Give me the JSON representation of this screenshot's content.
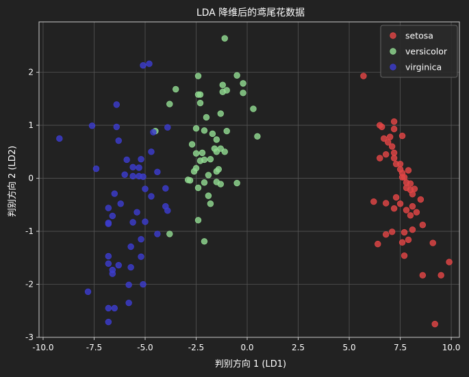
{
  "chart_data": {
    "type": "scatter",
    "title": "LDA 降维后的鸢尾花数据",
    "xlabel": "判别方向 1 (LD1)",
    "ylabel": "判别方向 2 (LD2)",
    "xlim": [
      -10.2,
      10.4
    ],
    "ylim": [
      -3.0,
      2.95
    ],
    "xticks": [
      -10.0,
      -7.5,
      -5.0,
      -2.5,
      0.0,
      2.5,
      5.0,
      7.5,
      10.0
    ],
    "xtick_labels": [
      "-10.0",
      "-7.5",
      "-5.0",
      "-2.5",
      "0.0",
      "2.5",
      "5.0",
      "7.5",
      "10.0"
    ],
    "yticks": [
      -3,
      -2,
      -1,
      0,
      1,
      2
    ],
    "ytick_labels": [
      "-3",
      "-2",
      "-1",
      "0",
      "1",
      "2"
    ],
    "grid": true,
    "legend_position": "top-right",
    "colors": {
      "background": "#222222",
      "grid": "#555555",
      "axes": "#cccccc",
      "text": "#ffffff"
    },
    "series": [
      {
        "name": "setosa",
        "color": "#e04545",
        "points": [
          [
            5.7,
            1.93
          ],
          [
            6.5,
            1.0
          ],
          [
            6.7,
            0.75
          ],
          [
            6.6,
            0.97
          ],
          [
            7.0,
            0.78
          ],
          [
            7.2,
            1.07
          ],
          [
            7.2,
            0.93
          ],
          [
            7.6,
            0.8
          ],
          [
            6.9,
            0.68
          ],
          [
            7.1,
            0.6
          ],
          [
            6.5,
            0.38
          ],
          [
            6.8,
            0.45
          ],
          [
            7.2,
            0.48
          ],
          [
            7.3,
            0.27
          ],
          [
            7.5,
            0.27
          ],
          [
            7.2,
            0.38
          ],
          [
            7.5,
            0.17
          ],
          [
            7.6,
            0.1
          ],
          [
            7.7,
            0.02
          ],
          [
            7.9,
            0.15
          ],
          [
            7.6,
            0.02
          ],
          [
            7.8,
            -0.08
          ],
          [
            8.0,
            -0.1
          ],
          [
            7.8,
            -0.18
          ],
          [
            8.0,
            -0.22
          ],
          [
            8.2,
            -0.2
          ],
          [
            8.1,
            -0.3
          ],
          [
            8.5,
            -0.4
          ],
          [
            6.2,
            -0.44
          ],
          [
            6.8,
            -0.47
          ],
          [
            7.3,
            -0.36
          ],
          [
            7.5,
            -0.48
          ],
          [
            7.2,
            -0.57
          ],
          [
            7.8,
            -0.6
          ],
          [
            8.1,
            -0.53
          ],
          [
            8.3,
            -0.64
          ],
          [
            8.0,
            -0.7
          ],
          [
            8.6,
            -0.88
          ],
          [
            8.1,
            -0.97
          ],
          [
            6.8,
            -1.06
          ],
          [
            7.1,
            -1.01
          ],
          [
            7.7,
            -1.02
          ],
          [
            7.9,
            -1.16
          ],
          [
            6.4,
            -1.24
          ],
          [
            7.6,
            -1.21
          ],
          [
            9.1,
            -1.22
          ],
          [
            7.7,
            -1.46
          ],
          [
            9.9,
            -1.58
          ],
          [
            8.6,
            -1.83
          ],
          [
            9.5,
            -1.83
          ],
          [
            9.2,
            -2.75
          ]
        ]
      },
      {
        "name": "versicolor",
        "color": "#90d890",
        "points": [
          [
            -1.1,
            2.64
          ],
          [
            -0.5,
            1.94
          ],
          [
            -2.4,
            1.93
          ],
          [
            -0.2,
            1.79
          ],
          [
            -1.2,
            1.76
          ],
          [
            -1.0,
            1.66
          ],
          [
            -1.2,
            1.63
          ],
          [
            -0.2,
            1.61
          ],
          [
            -3.5,
            1.68
          ],
          [
            -2.4,
            1.58
          ],
          [
            -2.3,
            1.58
          ],
          [
            -2.3,
            1.42
          ],
          [
            -3.8,
            1.4
          ],
          [
            -1.3,
            1.22
          ],
          [
            0.3,
            1.31
          ],
          [
            -2.0,
            1.15
          ],
          [
            -2.5,
            0.94
          ],
          [
            -2.1,
            0.9
          ],
          [
            -1.7,
            0.84
          ],
          [
            -1.0,
            0.89
          ],
          [
            -4.5,
            0.89
          ],
          [
            -1.5,
            0.73
          ],
          [
            0.5,
            0.79
          ],
          [
            -1.6,
            0.56
          ],
          [
            -1.3,
            0.56
          ],
          [
            -1.5,
            0.5
          ],
          [
            -1.1,
            0.5
          ],
          [
            -2.7,
            0.64
          ],
          [
            -2.2,
            0.48
          ],
          [
            -2.5,
            0.47
          ],
          [
            -1.8,
            0.36
          ],
          [
            -2.1,
            0.35
          ],
          [
            -2.3,
            0.33
          ],
          [
            -1.4,
            0.17
          ],
          [
            -1.5,
            0.13
          ],
          [
            -2.5,
            0.19
          ],
          [
            -1.9,
            0.06
          ],
          [
            -2.6,
            0.13
          ],
          [
            -2.8,
            -0.04
          ],
          [
            -2.9,
            -0.03
          ],
          [
            -2.1,
            -0.08
          ],
          [
            -1.5,
            -0.07
          ],
          [
            -1.3,
            -0.11
          ],
          [
            -0.5,
            -0.09
          ],
          [
            -2.4,
            -0.18
          ],
          [
            -1.9,
            -0.33
          ],
          [
            -1.8,
            -0.48
          ],
          [
            -2.4,
            -0.79
          ],
          [
            -3.8,
            -1.05
          ],
          [
            -2.1,
            -1.19
          ]
        ]
      },
      {
        "name": "virginica",
        "color": "#3c3ccc",
        "points": [
          [
            -4.8,
            2.16
          ],
          [
            -5.1,
            2.13
          ],
          [
            -6.4,
            1.39
          ],
          [
            -7.6,
            0.99
          ],
          [
            -6.4,
            0.97
          ],
          [
            -3.9,
            0.96
          ],
          [
            -4.6,
            0.87
          ],
          [
            -9.2,
            0.75
          ],
          [
            -6.3,
            0.71
          ],
          [
            -4.7,
            0.5
          ],
          [
            -5.9,
            0.35
          ],
          [
            -5.2,
            0.36
          ],
          [
            -7.4,
            0.18
          ],
          [
            -5.6,
            0.21
          ],
          [
            -5.3,
            0.2
          ],
          [
            -4.4,
            0.12
          ],
          [
            -6.0,
            0.07
          ],
          [
            -5.6,
            0.04
          ],
          [
            -5.3,
            0.04
          ],
          [
            -5.1,
            0.03
          ],
          [
            -5.0,
            -0.2
          ],
          [
            -4.0,
            -0.19
          ],
          [
            -6.5,
            -0.29
          ],
          [
            -4.7,
            -0.34
          ],
          [
            -4.0,
            -0.53
          ],
          [
            -3.9,
            -0.61
          ],
          [
            -6.2,
            -0.48
          ],
          [
            -6.8,
            -0.56
          ],
          [
            -5.4,
            -0.64
          ],
          [
            -6.6,
            -0.71
          ],
          [
            -6.8,
            -0.84
          ],
          [
            -5.6,
            -0.83
          ],
          [
            -5.0,
            -0.82
          ],
          [
            -6.8,
            -0.86
          ],
          [
            -4.4,
            -1.05
          ],
          [
            -5.2,
            -1.15
          ],
          [
            -5.7,
            -1.29
          ],
          [
            -6.8,
            -1.47
          ],
          [
            -5.2,
            -1.48
          ],
          [
            -6.8,
            -1.61
          ],
          [
            -6.3,
            -1.64
          ],
          [
            -5.7,
            -1.68
          ],
          [
            -6.6,
            -1.73
          ],
          [
            -6.6,
            -1.8
          ],
          [
            -5.1,
            -2.0
          ],
          [
            -5.8,
            -2.01
          ],
          [
            -7.8,
            -2.14
          ],
          [
            -5.8,
            -2.35
          ],
          [
            -6.8,
            -2.45
          ],
          [
            -6.5,
            -2.45
          ],
          [
            -6.8,
            -2.71
          ]
        ]
      }
    ]
  }
}
